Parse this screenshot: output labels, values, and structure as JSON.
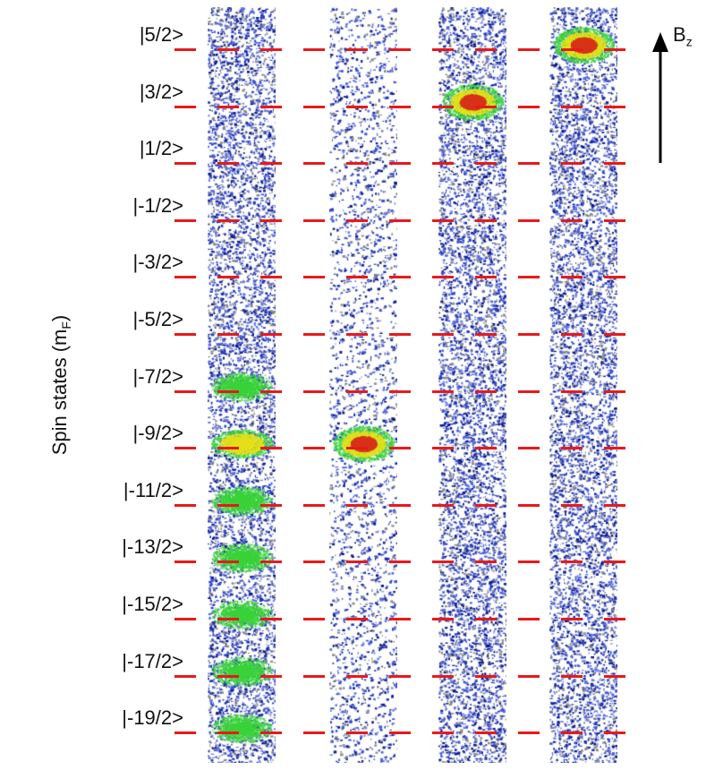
{
  "figure": {
    "y_axis_label": "Spin states (m",
    "y_axis_label_sub": "F",
    "y_axis_label_close": ")",
    "field_label": "B",
    "field_label_sub": "z"
  },
  "spin_states": [
    "|5/2>",
    "|3/2>",
    "|1/2>",
    "|-1/2>",
    "|-3/2>",
    "|-5/2>",
    "|-7/2>",
    "|-9/2>",
    "|-11/2>",
    "|-13/2>",
    "|-15/2>",
    "|-17/2>",
    "|-19/2>"
  ],
  "panels": [
    {
      "id": "panel-1",
      "texture": "random",
      "clouds": [
        {
          "state": "|-7/2>",
          "intensity": 0.35
        },
        {
          "state": "|-9/2>",
          "intensity": 0.6
        },
        {
          "state": "|-11/2>",
          "intensity": 0.4
        },
        {
          "state": "|-13/2>",
          "intensity": 0.35
        },
        {
          "state": "|-15/2>",
          "intensity": 0.3
        },
        {
          "state": "|-17/2>",
          "intensity": 0.3
        },
        {
          "state": "|-19/2>",
          "intensity": 0.3
        }
      ]
    },
    {
      "id": "panel-2",
      "texture": "stripes",
      "clouds": [
        {
          "state": "|-9/2>",
          "intensity": 1.0
        }
      ]
    },
    {
      "id": "panel-3",
      "texture": "random",
      "clouds": [
        {
          "state": "|3/2>",
          "intensity": 0.9
        }
      ]
    },
    {
      "id": "panel-4",
      "texture": "random",
      "clouds": [
        {
          "state": "|5/2>",
          "intensity": 1.0
        }
      ]
    }
  ],
  "colors": {
    "dash": "#e8191c",
    "noise_dark": "#0a1a8a",
    "noise_blue": "#3a52d6",
    "noise_gray": "#8c8c8c",
    "cloud_green": "#3bd43b",
    "cloud_yellow": "#e6e019",
    "cloud_red": "#d8341a"
  }
}
